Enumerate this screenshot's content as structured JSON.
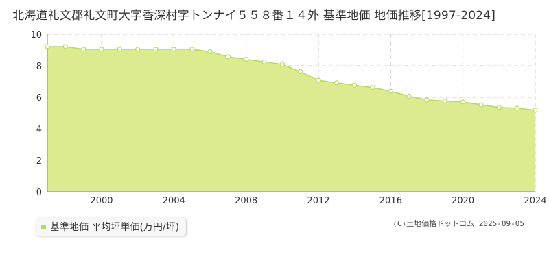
{
  "title": "北海道礼文郡礼文町大字香深村字トンナイ５５８番１４外 基準地価 地価推移[1997-2024]",
  "credit": "(C)土地価格ドットコム 2025-09-05",
  "colors": {
    "fill": "#dceb8f",
    "line": "#b5d860",
    "marker_fill": "#ffffff",
    "grid": "#cccccc",
    "axis_text": "#333333",
    "legend_swatch": "#b5d860"
  },
  "chart_data": {
    "type": "area",
    "title": "北海道礼文郡礼文町大字香深村字トンナイ５５８番１４外 基準地価 地価推移[1997-2024]",
    "xlabel": "",
    "ylabel": "",
    "xlim": [
      1997,
      2024
    ],
    "ylim": [
      0,
      10
    ],
    "xticks": [
      2000,
      2004,
      2008,
      2012,
      2016,
      2020,
      2024
    ],
    "yticks": [
      0,
      2,
      4,
      6,
      8,
      10
    ],
    "grid": true,
    "legend_position": "bottom-left",
    "series": [
      {
        "name": "基準地価 平均坪単価(万円/坪)",
        "x": [
          1997,
          1998,
          1999,
          2000,
          2001,
          2002,
          2003,
          2004,
          2005,
          2006,
          2007,
          2008,
          2009,
          2010,
          2011,
          2012,
          2013,
          2014,
          2015,
          2016,
          2017,
          2018,
          2019,
          2020,
          2021,
          2022,
          2023,
          2024
        ],
        "values": [
          9.22,
          9.22,
          9.05,
          9.05,
          9.05,
          9.05,
          9.05,
          9.05,
          9.05,
          8.89,
          8.57,
          8.41,
          8.25,
          8.09,
          7.63,
          7.08,
          6.92,
          6.77,
          6.62,
          6.38,
          6.07,
          5.83,
          5.76,
          5.7,
          5.52,
          5.36,
          5.31,
          5.18
        ]
      }
    ]
  }
}
